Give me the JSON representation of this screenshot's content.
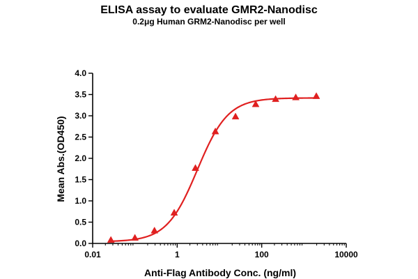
{
  "chart_data": {
    "type": "scatter",
    "title": "ELISA assay to evaluate GMR2-Nanodisc",
    "subtitle": "0.2μg Human GRM2-Nanodisc per well",
    "xlabel": "Anti-Flag Antibody Conc. (ng/ml)",
    "ylabel": "Mean Abs.(OD450)",
    "x_scale": "log",
    "xlim": [
      0.01,
      10000
    ],
    "ylim": [
      0.0,
      4.0
    ],
    "x_ticks": [
      0.01,
      1,
      100,
      10000
    ],
    "x_tick_labels": [
      "0.01",
      "1",
      "100",
      "10000"
    ],
    "y_ticks": [
      0.0,
      0.5,
      1.0,
      1.5,
      2.0,
      2.5,
      3.0,
      3.5,
      4.0
    ],
    "y_tick_labels": [
      "0.0",
      "0.5",
      "1.0",
      "1.5",
      "2.0",
      "2.5",
      "3.0",
      "3.5",
      "4.0"
    ],
    "grid": false,
    "color": "#e02020",
    "marker": "triangle",
    "series": [
      {
        "x": [
          0.027,
          0.1,
          0.29,
          0.85,
          2.7,
          8.0,
          24.0,
          72.0,
          213.0,
          640.0,
          1960.0
        ],
        "y": [
          0.08,
          0.13,
          0.3,
          0.72,
          1.77,
          2.63,
          2.98,
          3.27,
          3.39,
          3.43,
          3.46
        ]
      }
    ],
    "fit_curve": {
      "model": "4PL",
      "bottom": 0.04,
      "top": 3.42,
      "ec50": 3.0,
      "hill": 1.2
    }
  }
}
